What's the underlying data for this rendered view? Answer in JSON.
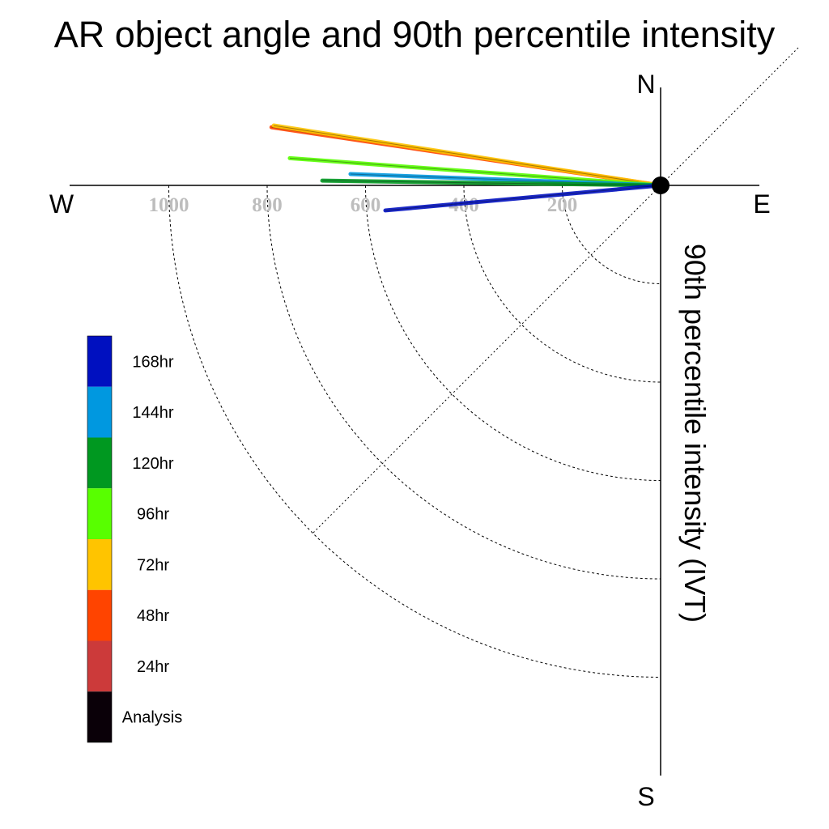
{
  "chart_data": {
    "type": "polar-vector",
    "title": "AR object angle and 90th percentile intensity",
    "ylabel": "90th percentile intensity (IVT)",
    "compass": {
      "north": "N",
      "south": "S",
      "east": "E",
      "west": "W"
    },
    "radial_ticks": [
      "1000",
      "800",
      "600",
      "400",
      "200"
    ],
    "radial_tick_values": [
      1000,
      800,
      600,
      400,
      200
    ],
    "radial_range": [
      0,
      1200
    ],
    "grid": true,
    "legend_position": "left",
    "legend": [
      {
        "label": "168hr",
        "color": "#0010c0"
      },
      {
        "label": "144hr",
        "color": "#0098e0"
      },
      {
        "label": "120hr",
        "color": "#009820"
      },
      {
        "label": "96hr",
        "color": "#58ff00"
      },
      {
        "label": "72hr",
        "color": "#ffc400"
      },
      {
        "label": "48hr",
        "color": "#ff4400"
      },
      {
        "label": "24hr",
        "color": "#cc3a3a"
      },
      {
        "label": "Analysis",
        "color": "#0a0008"
      }
    ],
    "series": [
      {
        "name": "48hr",
        "color": "#ff4400",
        "magnitude": 800,
        "angle_deg": 171.5
      },
      {
        "name": "72hr",
        "color": "#ffc400",
        "magnitude": 796,
        "angle_deg": 171.2
      },
      {
        "name": "96hr",
        "color": "#58ff00",
        "magnitude": 756,
        "angle_deg": 175.8
      },
      {
        "name": "144hr",
        "color": "#0098e0",
        "magnitude": 631,
        "angle_deg": 177.9
      },
      {
        "name": "120hr",
        "color": "#009820",
        "magnitude": 688,
        "angle_deg": 179.2
      },
      {
        "name": "168hr",
        "color": "#0010c0",
        "magnitude": 562,
        "angle_deg": 185.2
      }
    ]
  }
}
